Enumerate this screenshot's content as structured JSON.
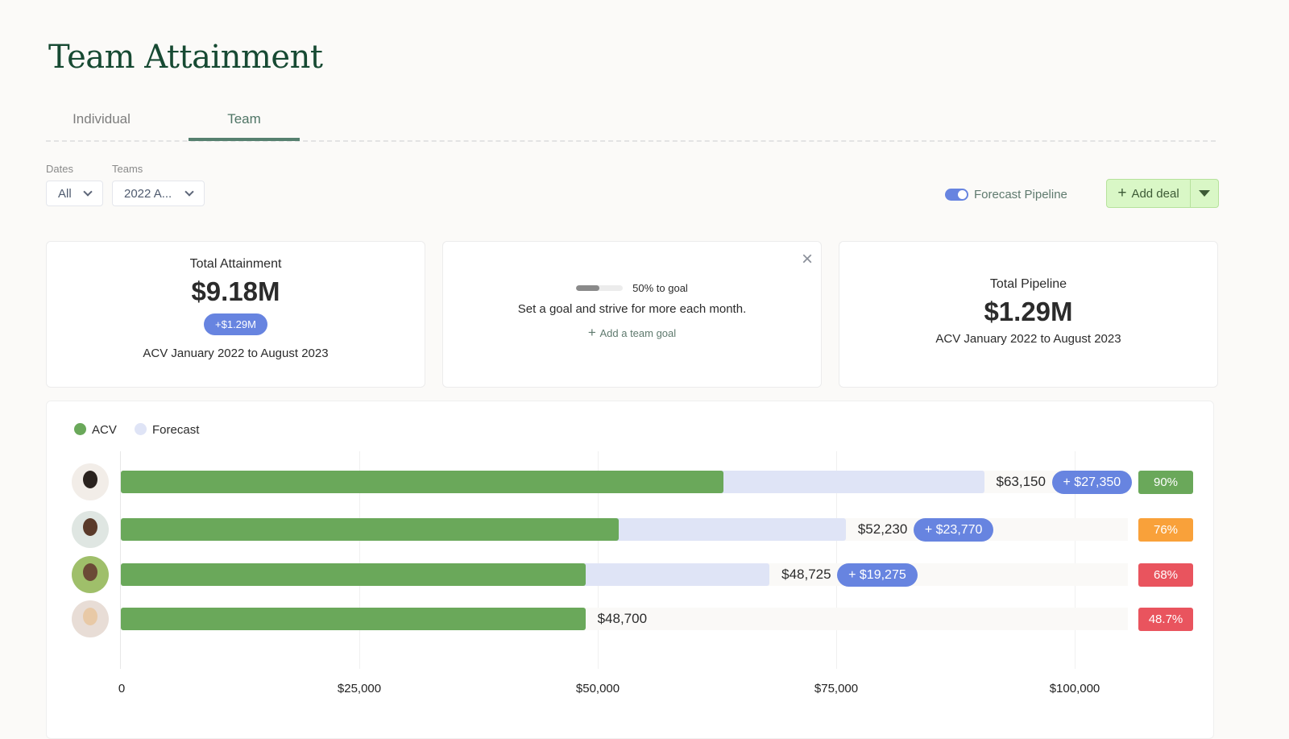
{
  "page_title": "Team Attainment",
  "tabs": [
    {
      "label": "Individual"
    },
    {
      "label": "Team",
      "active": true
    }
  ],
  "filters": {
    "dates": {
      "label": "Dates",
      "value": "All"
    },
    "teams": {
      "label": "Teams",
      "value": "2022 A..."
    }
  },
  "forecast_toggle": {
    "label": "Forecast Pipeline",
    "on": true
  },
  "add_deal": {
    "label": "Add deal"
  },
  "cards": {
    "attainment": {
      "title": "Total Attainment",
      "value": "$9.18M",
      "delta": "+$1.29M",
      "subtitle": "ACV January 2022 to August 2023"
    },
    "goal": {
      "progress_pct": 50,
      "progress_label": "50% to goal",
      "text": "Set a goal and strive for more each month.",
      "action": "Add a team goal"
    },
    "pipeline": {
      "title": "Total Pipeline",
      "value": "$1.29M",
      "subtitle": "ACV January 2022 to August 2023"
    }
  },
  "colors": {
    "acv": "#6aa85a",
    "forecast": "#dfe4f6",
    "pill": "#6784e0",
    "green": "#6aa85a",
    "orange": "#f9a13a",
    "red": "#e9545e"
  },
  "chart_data": {
    "type": "bar",
    "orientation": "horizontal",
    "stacked": true,
    "legend": [
      "ACV",
      "Forecast"
    ],
    "legend_position": "top-left",
    "x_ticks": [
      "0",
      "$25,000",
      "$50,000",
      "$75,000",
      "$100,000"
    ],
    "xlim": [
      0,
      100000
    ],
    "rows": [
      {
        "acv": 63150,
        "acv_label": "$63,150",
        "forecast": 27350,
        "forecast_label": "+ $27,350",
        "pct": "90%",
        "status": "green"
      },
      {
        "acv": 52230,
        "acv_label": "$52,230",
        "forecast": 23770,
        "forecast_label": "+ $23,770",
        "pct": "76%",
        "status": "orange"
      },
      {
        "acv": 48725,
        "acv_label": "$48,725",
        "forecast": 19275,
        "forecast_label": "+ $19,275",
        "pct": "68%",
        "status": "red"
      },
      {
        "acv": 48700,
        "acv_label": "$48,700",
        "forecast": 0,
        "forecast_label": "",
        "pct": "48.7%",
        "status": "red"
      }
    ]
  }
}
